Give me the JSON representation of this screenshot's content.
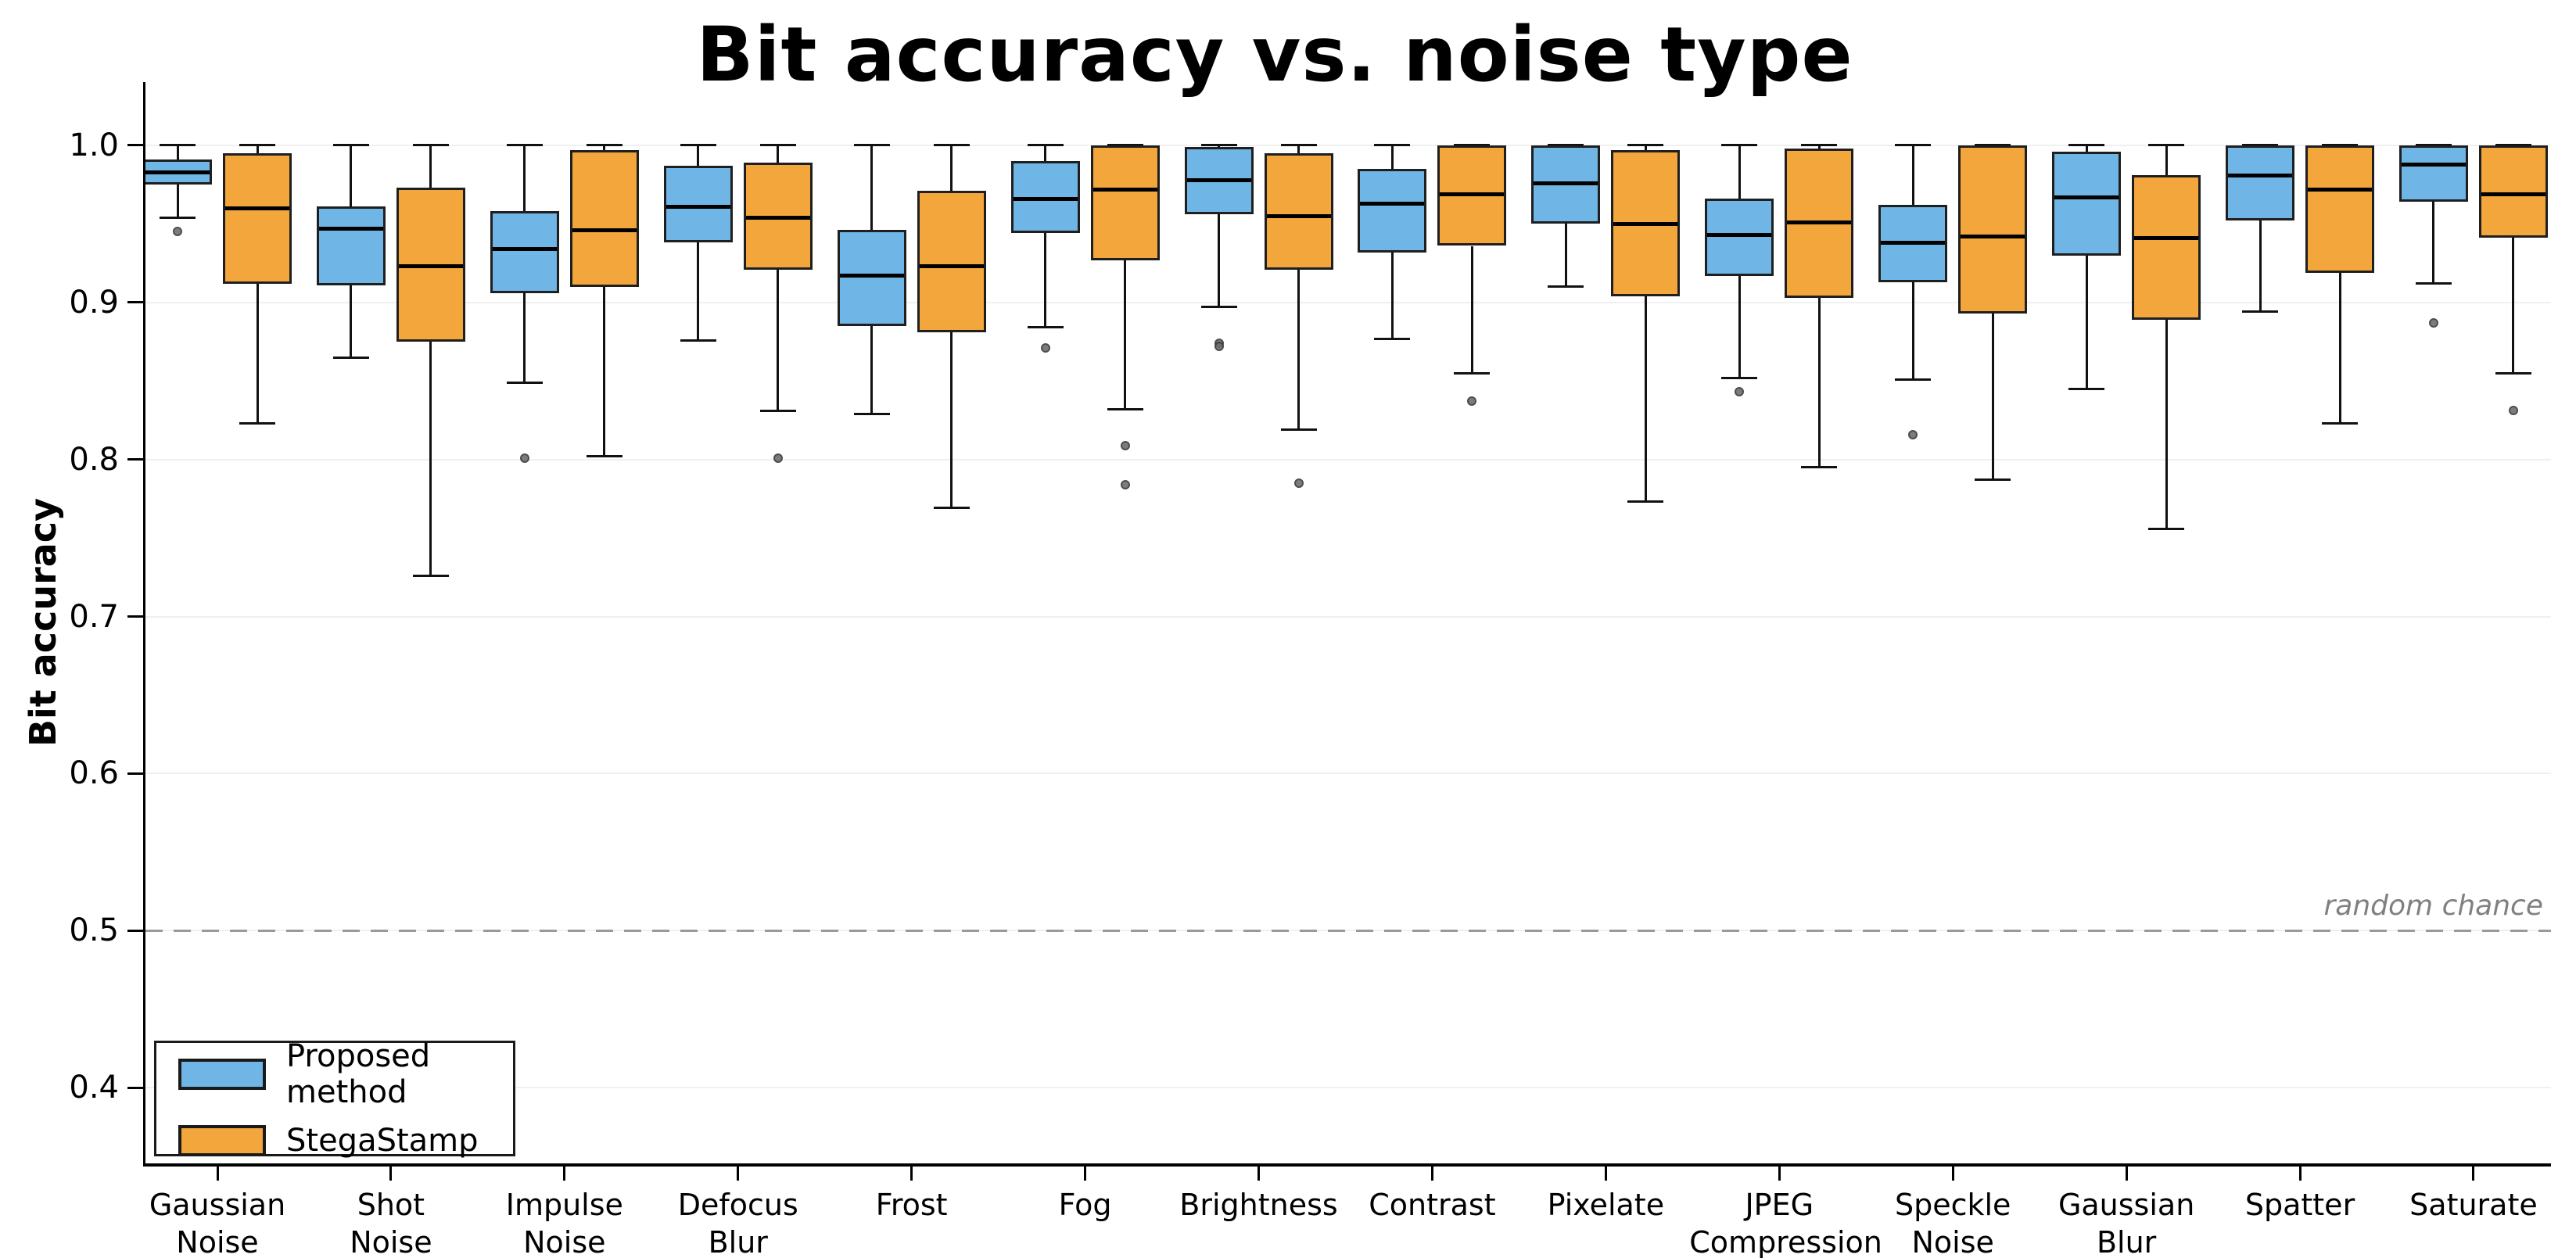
{
  "chart_data": {
    "type": "box",
    "title": "Bit accuracy vs. noise type",
    "ylabel": "Bit accuracy",
    "xlabel": "",
    "ylim": [
      0.352,
      1.04
    ],
    "yticks": [
      1.0,
      0.9,
      0.8,
      0.7,
      0.6,
      0.5,
      0.4
    ],
    "grid": true,
    "legend_position": "lower left",
    "reference_line": {
      "value": 0.5,
      "label": "random chance",
      "style": "dashed",
      "color": "#999999"
    },
    "palette": {
      "box_edge": "#1f1f1f",
      "median": "#000000",
      "whisker": "#111111",
      "outlier": "#6e6e6e",
      "grid": "#f0f0f0",
      "axis": "#000000",
      "background": "#ffffff"
    },
    "categories": [
      "Gaussian\nNoise",
      "Shot\nNoise",
      "Impulse\nNoise",
      "Defocus\nBlur",
      "Frost",
      "Fog",
      "Brightness",
      "Contrast",
      "Pixelate",
      "JPEG\nCompression",
      "Speckle\nNoise",
      "Gaussian\nBlur",
      "Spatter",
      "Saturate"
    ],
    "series": [
      {
        "name": "Proposed method",
        "color": "#6fb5e5",
        "boxes": [
          {
            "low": 0.954,
            "q1": 0.975,
            "median": 0.983,
            "q3": 0.991,
            "high": 1.0,
            "outliers": [
              0.945
            ]
          },
          {
            "low": 0.865,
            "q1": 0.911,
            "median": 0.947,
            "q3": 0.961,
            "high": 1.0,
            "outliers": []
          },
          {
            "low": 0.849,
            "q1": 0.906,
            "median": 0.934,
            "q3": 0.958,
            "high": 1.0,
            "outliers": [
              0.801
            ]
          },
          {
            "low": 0.876,
            "q1": 0.938,
            "median": 0.961,
            "q3": 0.987,
            "high": 1.0,
            "outliers": []
          },
          {
            "low": 0.829,
            "q1": 0.885,
            "median": 0.917,
            "q3": 0.946,
            "high": 1.0,
            "outliers": []
          },
          {
            "low": 0.884,
            "q1": 0.944,
            "median": 0.966,
            "q3": 0.99,
            "high": 1.0,
            "outliers": [
              0.871
            ]
          },
          {
            "low": 0.897,
            "q1": 0.956,
            "median": 0.978,
            "q3": 0.999,
            "high": 1.0,
            "outliers": [
              0.874,
              0.872
            ]
          },
          {
            "low": 0.877,
            "q1": 0.932,
            "median": 0.963,
            "q3": 0.985,
            "high": 1.0,
            "outliers": []
          },
          {
            "low": 0.91,
            "q1": 0.95,
            "median": 0.976,
            "q3": 1.0,
            "high": 1.0,
            "outliers": []
          },
          {
            "low": 0.852,
            "q1": 0.917,
            "median": 0.943,
            "q3": 0.966,
            "high": 1.0,
            "outliers": [
              0.843
            ]
          },
          {
            "low": 0.851,
            "q1": 0.913,
            "median": 0.938,
            "q3": 0.962,
            "high": 1.0,
            "outliers": [
              0.816
            ]
          },
          {
            "low": 0.845,
            "q1": 0.93,
            "median": 0.967,
            "q3": 0.996,
            "high": 1.0,
            "outliers": []
          },
          {
            "low": 0.894,
            "q1": 0.952,
            "median": 0.981,
            "q3": 1.0,
            "high": 1.0,
            "outliers": []
          },
          {
            "low": 0.912,
            "q1": 0.964,
            "median": 0.988,
            "q3": 1.0,
            "high": 1.0,
            "outliers": [
              0.887
            ]
          }
        ]
      },
      {
        "name": "StegaStamp",
        "color": "#f2a63c",
        "boxes": [
          {
            "low": 0.823,
            "q1": 0.912,
            "median": 0.96,
            "q3": 0.995,
            "high": 1.0,
            "outliers": []
          },
          {
            "low": 0.726,
            "q1": 0.875,
            "median": 0.923,
            "q3": 0.973,
            "high": 1.0,
            "outliers": []
          },
          {
            "low": 0.802,
            "q1": 0.91,
            "median": 0.946,
            "q3": 0.997,
            "high": 1.0,
            "outliers": []
          },
          {
            "low": 0.831,
            "q1": 0.921,
            "median": 0.954,
            "q3": 0.989,
            "high": 1.0,
            "outliers": [
              0.801
            ]
          },
          {
            "low": 0.769,
            "q1": 0.881,
            "median": 0.923,
            "q3": 0.971,
            "high": 1.0,
            "outliers": []
          },
          {
            "low": 0.832,
            "q1": 0.927,
            "median": 0.972,
            "q3": 1.0,
            "high": 1.0,
            "outliers": [
              0.809,
              0.784
            ]
          },
          {
            "low": 0.819,
            "q1": 0.921,
            "median": 0.955,
            "q3": 0.995,
            "high": 1.0,
            "outliers": [
              0.785
            ]
          },
          {
            "low": 0.855,
            "q1": 0.936,
            "median": 0.969,
            "q3": 1.0,
            "high": 1.0,
            "outliers": [
              0.837
            ]
          },
          {
            "low": 0.773,
            "q1": 0.904,
            "median": 0.95,
            "q3": 0.997,
            "high": 1.0,
            "outliers": []
          },
          {
            "low": 0.795,
            "q1": 0.903,
            "median": 0.951,
            "q3": 0.998,
            "high": 1.0,
            "outliers": []
          },
          {
            "low": 0.787,
            "q1": 0.893,
            "median": 0.942,
            "q3": 1.0,
            "high": 1.0,
            "outliers": []
          },
          {
            "low": 0.756,
            "q1": 0.889,
            "median": 0.941,
            "q3": 0.981,
            "high": 1.0,
            "outliers": []
          },
          {
            "low": 0.823,
            "q1": 0.919,
            "median": 0.972,
            "q3": 1.0,
            "high": 1.0,
            "outliers": []
          },
          {
            "low": 0.855,
            "q1": 0.941,
            "median": 0.969,
            "q3": 1.0,
            "high": 1.0,
            "outliers": [
              0.831
            ]
          }
        ]
      }
    ]
  }
}
